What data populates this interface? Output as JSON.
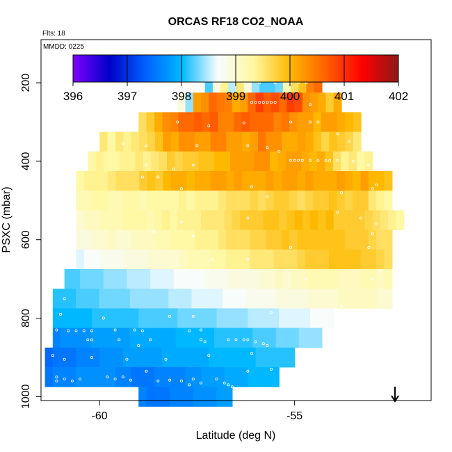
{
  "chart_data": {
    "type": "heatmap",
    "title": "ORCAS RF18 CO2_NOAA",
    "flights_label": "Flts: 18",
    "date_label": "MMDD: 0225",
    "xlabel": "Latitude (deg N)",
    "ylabel": "PSXC (mbar)",
    "xlim": [
      -61.5,
      -51.5
    ],
    "ylim": [
      1010,
      90
    ],
    "x_ticks": [
      -60,
      -55
    ],
    "y_ticks": [
      200,
      400,
      600,
      800,
      1000
    ],
    "colorbar": {
      "min": 396,
      "max": 402,
      "ticks": [
        396,
        397,
        398,
        399,
        400,
        401,
        402
      ],
      "stops": [
        "#8000ff",
        "#0000c8",
        "#0060ff",
        "#00b8ff",
        "#f8fcff",
        "#fff8a0",
        "#ffb800",
        "#ff6000",
        "#ff0000",
        "#8b1a1a"
      ]
    },
    "rows": [
      {
        "p": 200,
        "lat_start": -57.3,
        "lat_end": -54.3,
        "values": [
          398.2,
          398.9,
          399.4,
          398.5,
          399.5,
          398.9,
          398.4,
          398.2,
          398.2,
          398.3,
          399.2,
          399.6,
          399.9,
          400.4,
          400.6
        ]
      },
      {
        "p": 250,
        "lat_start": -58.0,
        "lat_end": -53.8,
        "values": [
          398.9,
          398.4,
          400.2,
          400.3,
          400.6,
          400.5,
          400.4,
          400.1,
          400.2,
          400.6,
          400.9,
          400.7,
          400.8,
          400.6,
          400.9,
          400.8,
          400.3,
          400.2,
          400.1,
          399.8,
          400.1
        ]
      },
      {
        "p": 300,
        "lat_start": -59.0,
        "lat_end": -53.3,
        "values": [
          399.6,
          399.8,
          400.1,
          400.3,
          400.4,
          400.6,
          400.6,
          400.7,
          400.6,
          400.7,
          400.4,
          400.4,
          400.6,
          400.7,
          400.6,
          400.6,
          400.6,
          400.4,
          400.5,
          400.3,
          400.2,
          400.2,
          400.0,
          400.2,
          400.2,
          400.1,
          400.0,
          399.9
        ]
      },
      {
        "p": 350,
        "lat_start": -60.0,
        "lat_end": -53.3,
        "values": [
          399.5,
          399.3,
          399.5,
          399.4,
          399.5,
          399.6,
          399.7,
          399.9,
          400.2,
          400.1,
          400.3,
          400.3,
          400.2,
          400.2,
          400.4,
          400.4,
          400.2,
          400.2,
          400.1,
          400.2,
          400.5,
          400.3,
          400.3,
          400.1,
          400.1,
          400.2,
          400.1,
          399.9,
          399.7,
          399.9,
          399.8,
          399.7,
          399.5
        ]
      },
      {
        "p": 400,
        "lat_start": -60.3,
        "lat_end": -53.0,
        "values": [
          399.3,
          399.4,
          399.3,
          399.3,
          399.4,
          399.4,
          399.5,
          399.4,
          399.5,
          399.6,
          399.8,
          399.7,
          399.8,
          399.8,
          399.9,
          399.9,
          400.0,
          400.0,
          400.2,
          400.2,
          400.2,
          400.3,
          400.3,
          400.0,
          400.1,
          400.2,
          400.2,
          400.1,
          400.0,
          400.1,
          399.9,
          399.6,
          399.4,
          399.5,
          399.3,
          399.4
        ]
      },
      {
        "p": 450,
        "lat_start": -60.6,
        "lat_end": -52.5,
        "values": [
          399.3,
          399.4,
          399.4,
          399.4,
          399.5,
          399.6,
          399.6,
          399.6,
          399.8,
          399.9,
          399.8,
          400.0,
          400.1,
          400.1,
          400.0,
          400.1,
          400.1,
          400.2,
          400.2,
          400.1,
          400.2,
          400.1,
          400.1,
          400.1,
          400.2,
          400.1,
          400.2,
          400.2,
          400.1,
          400.2,
          400.1,
          400.1,
          400.1,
          400.2,
          400.1,
          400.0,
          400.2,
          400.0,
          400.0,
          399.9
        ]
      },
      {
        "p": 500,
        "lat_start": -60.6,
        "lat_end": -52.5,
        "values": [
          399.2,
          399.2,
          399.3,
          399.3,
          399.2,
          399.2,
          399.3,
          399.3,
          399.2,
          399.3,
          399.3,
          399.3,
          399.3,
          399.4,
          399.3,
          399.4,
          399.4,
          399.4,
          399.5,
          399.6,
          399.6,
          399.6,
          399.7,
          399.6,
          399.7,
          399.8,
          399.8,
          399.7,
          399.6,
          399.7,
          399.8,
          399.8,
          399.9,
          399.8,
          399.7,
          399.8,
          399.8,
          399.5,
          399.4,
          399.3
        ]
      },
      {
        "p": 550,
        "lat_start": -60.6,
        "lat_end": -52.2,
        "values": [
          399.0,
          399.1,
          399.1,
          399.2,
          399.2,
          399.2,
          399.3,
          399.3,
          399.3,
          399.2,
          399.3,
          399.4,
          399.3,
          399.4,
          399.4,
          399.4,
          399.5,
          399.5,
          399.5,
          399.6,
          399.7,
          399.8,
          399.8,
          399.8,
          399.9,
          399.9,
          399.8,
          399.9,
          400.0,
          399.9,
          400.0,
          399.9,
          400.0,
          399.8,
          399.8,
          399.8,
          399.8,
          399.7,
          399.6,
          399.5,
          399.4,
          399.3
        ]
      },
      {
        "p": 600,
        "lat_start": -60.6,
        "lat_end": -52.5,
        "values": [
          398.9,
          398.9,
          399.0,
          399.0,
          399.1,
          399.0,
          399.0,
          399.1,
          399.1,
          399.1,
          399.2,
          399.2,
          399.3,
          399.3,
          399.3,
          399.4,
          399.4,
          399.4,
          399.5,
          399.6,
          399.6,
          399.6,
          399.7,
          399.7,
          399.8,
          399.8,
          399.9,
          399.8,
          399.9,
          399.9,
          399.9,
          399.9,
          399.9,
          399.9,
          399.8,
          399.8,
          399.8,
          399.7,
          399.6,
          399.6
        ]
      },
      {
        "p": 650,
        "lat_start": -60.6,
        "lat_end": -52.5,
        "values": [
          398.6,
          398.7,
          398.7,
          398.8,
          398.8,
          398.8,
          398.9,
          398.9,
          398.9,
          399.0,
          399.0,
          399.0,
          399.0,
          399.1,
          399.2,
          399.2,
          399.2,
          399.3,
          399.3,
          399.4,
          399.4,
          399.4,
          399.5,
          399.5,
          399.5,
          399.6,
          399.6,
          399.6,
          399.7,
          399.8,
          399.8,
          399.8,
          399.9,
          399.9,
          399.9,
          399.9,
          399.8,
          399.8,
          399.7,
          399.6
        ]
      },
      {
        "p": 700,
        "lat_start": -60.9,
        "lat_end": -52.5,
        "values": [
          398.2,
          398.2,
          398.3,
          398.3,
          398.3,
          398.4,
          398.4,
          398.4,
          398.5,
          398.5,
          398.5,
          398.6,
          398.6,
          398.6,
          398.7,
          398.7,
          398.7,
          398.7,
          398.8,
          398.8,
          398.8,
          398.9,
          398.9,
          398.9,
          398.9,
          399.0,
          399.0,
          399.1,
          399.0,
          399.1,
          399.1,
          399.2,
          399.2,
          399.2,
          399.2,
          399.1,
          399.1,
          399.1,
          399.2,
          399.2,
          399.1,
          399.2
        ]
      },
      {
        "p": 750,
        "lat_start": -61.2,
        "lat_end": -52.5,
        "values": [
          398.1,
          398.1,
          398.1,
          398.2,
          398.2,
          398.2,
          398.3,
          398.3,
          398.3,
          398.3,
          398.4,
          398.4,
          398.4,
          398.4,
          398.4,
          398.5,
          398.5,
          398.5,
          398.6,
          398.6,
          398.6,
          398.6,
          398.7,
          398.7,
          398.7,
          398.8,
          398.8,
          398.8,
          398.8,
          398.9,
          398.9,
          398.9,
          398.9,
          399.0,
          399.0,
          399.0,
          399.0,
          399.1,
          399.1,
          399.1,
          399.1,
          399.1,
          399.0,
          399.0
        ]
      },
      {
        "p": 800,
        "lat_start": -61.2,
        "lat_end": -54.0,
        "values": [
          398.0,
          398.0,
          398.0,
          398.0,
          398.0,
          398.1,
          398.1,
          398.1,
          398.1,
          398.1,
          398.1,
          398.2,
          398.2,
          398.2,
          398.2,
          398.2,
          398.3,
          398.3,
          398.3,
          398.3,
          398.3,
          398.4,
          398.4,
          398.4,
          398.4,
          398.5,
          398.5,
          398.5,
          398.5,
          398.6,
          398.6,
          398.6,
          398.6,
          398.7,
          398.7,
          398.7
        ]
      },
      {
        "p": 850,
        "lat_start": -61.2,
        "lat_end": -54.3,
        "values": [
          397.6,
          397.7,
          397.7,
          397.7,
          397.7,
          397.8,
          397.8,
          397.8,
          397.8,
          397.8,
          397.9,
          397.9,
          397.9,
          397.9,
          397.9,
          397.9,
          398.0,
          398.0,
          398.0,
          398.0,
          398.0,
          398.1,
          398.1,
          398.1,
          398.1,
          398.1,
          398.2,
          398.2,
          398.2,
          398.3,
          398.3,
          398.3,
          398.4,
          398.4,
          398.4
        ]
      },
      {
        "p": 900,
        "lat_start": -61.4,
        "lat_end": -55.0,
        "values": [
          397.4,
          397.5,
          397.5,
          397.5,
          397.6,
          397.6,
          397.6,
          397.7,
          397.7,
          397.7,
          397.8,
          397.8,
          397.8,
          397.8,
          397.8,
          397.9,
          397.9,
          397.9,
          397.9,
          397.9,
          397.9,
          398.0,
          398.0,
          398.0,
          398.0,
          398.0,
          398.0,
          398.1,
          398.1,
          398.1,
          398.1,
          398.1
        ]
      },
      {
        "p": 950,
        "lat_start": -61.4,
        "lat_end": -55.4,
        "values": [
          397.5,
          397.6,
          397.6,
          397.6,
          397.7,
          397.7,
          397.7,
          397.7,
          397.7,
          397.6,
          397.6,
          397.5,
          397.5,
          397.5,
          397.6,
          397.6,
          397.6,
          397.6,
          397.7,
          397.7,
          397.8,
          397.8,
          397.8,
          397.9,
          397.9,
          397.9,
          398.0,
          398.0,
          398.0,
          398.0
        ]
      },
      {
        "p": 1000,
        "lat_start": -59.0,
        "lat_end": -56.6,
        "values": [
          397.6,
          397.5,
          397.5,
          397.5,
          397.6,
          397.6,
          397.6,
          397.7,
          397.7,
          397.7,
          397.8,
          397.8
        ]
      }
    ],
    "points": [
      [
        -57.5,
        200
      ],
      [
        -56.9,
        200
      ],
      [
        -56.3,
        200
      ],
      [
        -55.9,
        200
      ],
      [
        -55.5,
        200
      ],
      [
        -55.1,
        200
      ],
      [
        -54.9,
        200
      ],
      [
        -54.7,
        200
      ],
      [
        -56.1,
        250
      ],
      [
        -56.0,
        250
      ],
      [
        -55.9,
        250
      ],
      [
        -55.8,
        250
      ],
      [
        -55.7,
        250
      ],
      [
        -55.6,
        250
      ],
      [
        -55.5,
        250
      ],
      [
        -54.6,
        255
      ],
      [
        -58.0,
        300
      ],
      [
        -57.2,
        310
      ],
      [
        -56.3,
        302
      ],
      [
        -55.1,
        300
      ],
      [
        -54.6,
        300
      ],
      [
        -54.4,
        300
      ],
      [
        -53.9,
        330
      ],
      [
        -53.6,
        350
      ],
      [
        -59.4,
        355
      ],
      [
        -58.8,
        360
      ],
      [
        -57.5,
        360
      ],
      [
        -56.2,
        360
      ],
      [
        -55.7,
        365
      ],
      [
        -55.4,
        375
      ],
      [
        -58.8,
        410
      ],
      [
        -58.9,
        440
      ],
      [
        -58.5,
        440
      ],
      [
        -58.1,
        420
      ],
      [
        -57.6,
        410
      ],
      [
        -55.1,
        398
      ],
      [
        -55.0,
        398
      ],
      [
        -54.9,
        398
      ],
      [
        -54.8,
        398
      ],
      [
        -54.6,
        398
      ],
      [
        -54.4,
        398
      ],
      [
        -54.2,
        398
      ],
      [
        -54.1,
        398
      ],
      [
        -53.9,
        398
      ],
      [
        -53.5,
        400
      ],
      [
        -53.1,
        410
      ],
      [
        -57.9,
        470
      ],
      [
        -56.1,
        465
      ],
      [
        -55.7,
        490
      ],
      [
        -53.8,
        480
      ],
      [
        -53.0,
        470
      ],
      [
        -52.9,
        460
      ],
      [
        -53.9,
        530
      ],
      [
        -53.3,
        545
      ],
      [
        -52.9,
        560
      ],
      [
        -56.2,
        545
      ],
      [
        -57.9,
        555
      ],
      [
        -58.6,
        580
      ],
      [
        -57.6,
        590
      ],
      [
        -53.0,
        585
      ],
      [
        -53.1,
        620
      ],
      [
        -55.1,
        620
      ],
      [
        -57.1,
        650
      ],
      [
        -56.2,
        650
      ],
      [
        -53.0,
        700
      ],
      [
        -52.8,
        680
      ],
      [
        -54.7,
        700
      ],
      [
        -60.9,
        750
      ],
      [
        -61.0,
        790
      ],
      [
        -59.9,
        800
      ],
      [
        -58.2,
        795
      ],
      [
        -57.6,
        795
      ],
      [
        -55.6,
        785
      ],
      [
        -53.8,
        770
      ],
      [
        -54.3,
        800
      ],
      [
        -61.1,
        830
      ],
      [
        -60.8,
        832
      ],
      [
        -60.6,
        832
      ],
      [
        -60.4,
        832
      ],
      [
        -60.2,
        832
      ],
      [
        -59.6,
        830
      ],
      [
        -59.1,
        830
      ],
      [
        -58.9,
        832
      ],
      [
        -57.7,
        832
      ],
      [
        -57.4,
        830
      ],
      [
        -60.3,
        855
      ],
      [
        -60.2,
        855
      ],
      [
        -59.5,
        855
      ],
      [
        -59.0,
        870
      ],
      [
        -58.7,
        855
      ],
      [
        -57.4,
        855
      ],
      [
        -57.3,
        860
      ],
      [
        -56.7,
        855
      ],
      [
        -56.5,
        855
      ],
      [
        -56.3,
        855
      ],
      [
        -56.2,
        855
      ],
      [
        -56.0,
        860
      ],
      [
        -55.8,
        865
      ],
      [
        -55.7,
        870
      ],
      [
        -61.2,
        895
      ],
      [
        -60.9,
        905
      ],
      [
        -60.2,
        900
      ],
      [
        -59.3,
        905
      ],
      [
        -58.3,
        905
      ],
      [
        -57.2,
        895
      ],
      [
        -56.1,
        890
      ],
      [
        -56.2,
        935
      ],
      [
        -55.6,
        930
      ],
      [
        -61.1,
        950
      ],
      [
        -61.1,
        960
      ],
      [
        -60.9,
        955
      ],
      [
        -60.7,
        960
      ],
      [
        -60.5,
        955
      ],
      [
        -59.8,
        950
      ],
      [
        -59.6,
        955
      ],
      [
        -59.4,
        950
      ],
      [
        -59.2,
        958
      ],
      [
        -58.8,
        935
      ],
      [
        -58.5,
        960
      ],
      [
        -58.2,
        958
      ],
      [
        -57.9,
        960
      ],
      [
        -57.6,
        955
      ],
      [
        -57.4,
        965
      ],
      [
        -57.0,
        955
      ],
      [
        -56.8,
        965
      ],
      [
        -56.7,
        970
      ],
      [
        -56.6,
        975
      ],
      [
        -57.7,
        970
      ]
    ]
  }
}
